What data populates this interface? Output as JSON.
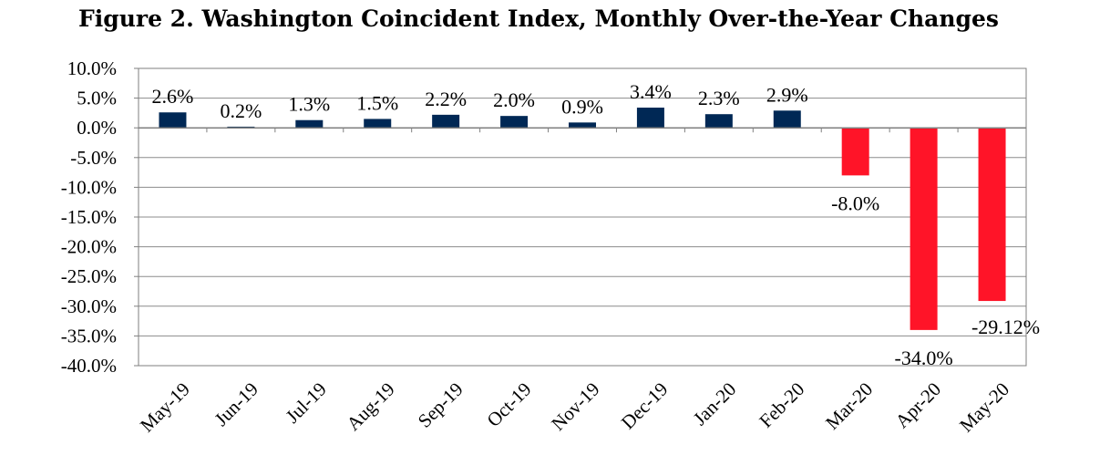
{
  "chart_data": {
    "type": "bar",
    "title": "Figure 2. Washington Coincident Index, Monthly Over-the-Year Changes",
    "xlabel": "",
    "ylabel": "",
    "categories": [
      "May-19",
      "Jun-19",
      "Jul-19",
      "Aug-19",
      "Sep-19",
      "Oct-19",
      "Nov-19",
      "Dec-19",
      "Jan-20",
      "Feb-20",
      "Mar-20",
      "Apr-20",
      "May-20"
    ],
    "values": [
      2.6,
      0.2,
      1.3,
      1.5,
      2.2,
      2.0,
      0.9,
      3.4,
      2.3,
      2.9,
      -8.0,
      -34.0,
      -29.12
    ],
    "data_labels": [
      "2.6%",
      "0.2%",
      "1.3%",
      "1.5%",
      "2.2%",
      "2.0%",
      "0.9%",
      "3.4%",
      "2.3%",
      "2.9%",
      "-8.0%",
      "-34.0%",
      "-29.12%"
    ],
    "ylim": [
      -40,
      10
    ],
    "yticks": [
      10,
      5,
      0,
      -5,
      -10,
      -15,
      -20,
      -25,
      -30,
      -35,
      -40
    ],
    "ytick_labels": [
      "10.0%",
      "5.0%",
      "0.0%",
      "-5.0%",
      "-10.0%",
      "-15.0%",
      "-20.0%",
      "-25.0%",
      "-30.0%",
      "-35.0%",
      "-40.0%"
    ],
    "grid": true,
    "legend": "none",
    "colors": {
      "positive": "#002855",
      "negative": "#ff1428",
      "grid": "#8c8c8c",
      "axis": "#7f7f7f"
    }
  }
}
